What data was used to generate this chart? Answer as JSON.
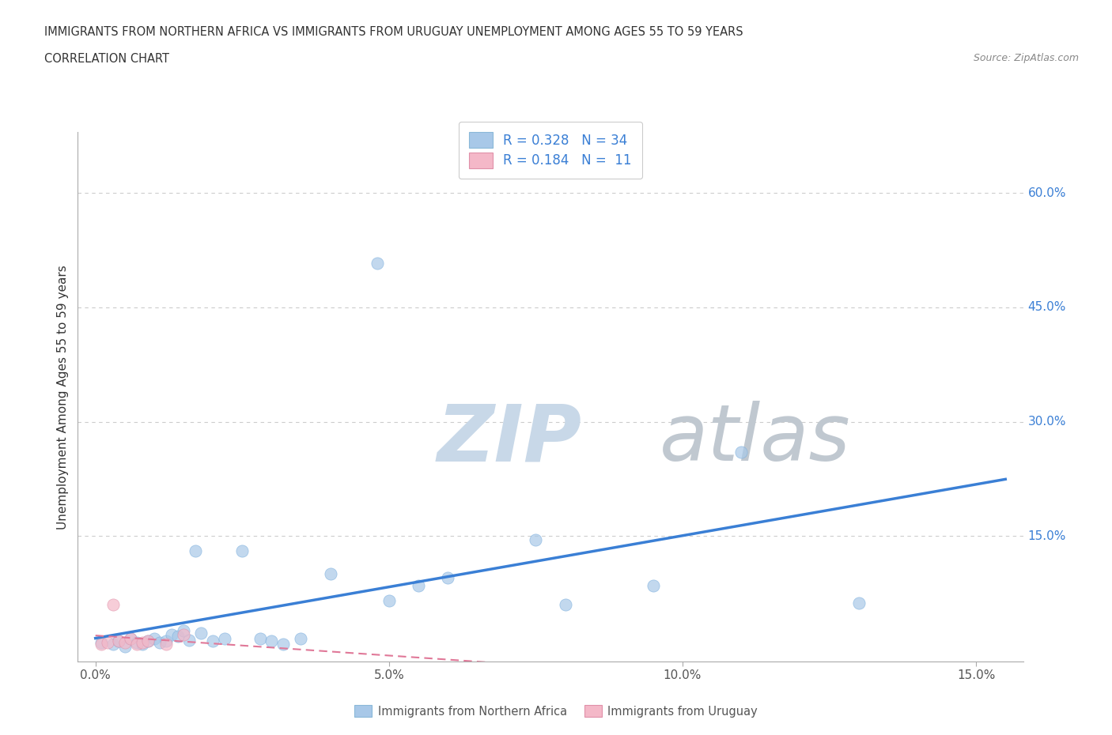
{
  "title_line1": "IMMIGRANTS FROM NORTHERN AFRICA VS IMMIGRANTS FROM URUGUAY UNEMPLOYMENT AMONG AGES 55 TO 59 YEARS",
  "title_line2": "CORRELATION CHART",
  "source_text": "Source: ZipAtlas.com",
  "ylabel": "Unemployment Among Ages 55 to 59 years",
  "R_blue": 0.328,
  "N_blue": 34,
  "R_pink": 0.184,
  "N_pink": 11,
  "blue_color": "#a8c8e8",
  "pink_color": "#f4b8c8",
  "blue_line_color": "#3a7fd5",
  "pink_line_color": "#e07898",
  "watermark_zip_color": "#c8d8e8",
  "watermark_atlas_color": "#c0c8d0",
  "blue_scatter_x": [
    0.001,
    0.003,
    0.004,
    0.005,
    0.006,
    0.007,
    0.008,
    0.009,
    0.01,
    0.011,
    0.012,
    0.013,
    0.014,
    0.015,
    0.016,
    0.017,
    0.018,
    0.02,
    0.022,
    0.025,
    0.028,
    0.03,
    0.032,
    0.035,
    0.04,
    0.048,
    0.05,
    0.055,
    0.06,
    0.075,
    0.08,
    0.095,
    0.11,
    0.13
  ],
  "blue_scatter_y": [
    0.01,
    0.008,
    0.012,
    0.005,
    0.015,
    0.01,
    0.008,
    0.012,
    0.015,
    0.01,
    0.012,
    0.02,
    0.018,
    0.025,
    0.013,
    0.13,
    0.022,
    0.012,
    0.015,
    0.13,
    0.015,
    0.012,
    0.008,
    0.015,
    0.1,
    0.508,
    0.065,
    0.085,
    0.095,
    0.145,
    0.06,
    0.085,
    0.26,
    0.062
  ],
  "pink_scatter_x": [
    0.001,
    0.002,
    0.003,
    0.004,
    0.005,
    0.006,
    0.007,
    0.008,
    0.009,
    0.012,
    0.015
  ],
  "pink_scatter_y": [
    0.008,
    0.01,
    0.06,
    0.012,
    0.01,
    0.015,
    0.008,
    0.01,
    0.012,
    0.008,
    0.02
  ],
  "xlim": [
    -0.003,
    0.158
  ],
  "ylim": [
    -0.015,
    0.68
  ],
  "xticks": [
    0.0,
    0.05,
    0.1,
    0.15
  ],
  "xticklabels": [
    "0.0%",
    "5.0%",
    "10.0%",
    "15.0%"
  ],
  "yticks_right": [
    0.15,
    0.3,
    0.45,
    0.6
  ],
  "ytick_right_labels": [
    "15.0%",
    "30.0%",
    "45.0%",
    "60.0%"
  ],
  "grid_color": "#cccccc",
  "background_color": "#ffffff",
  "scatter_size": 120
}
